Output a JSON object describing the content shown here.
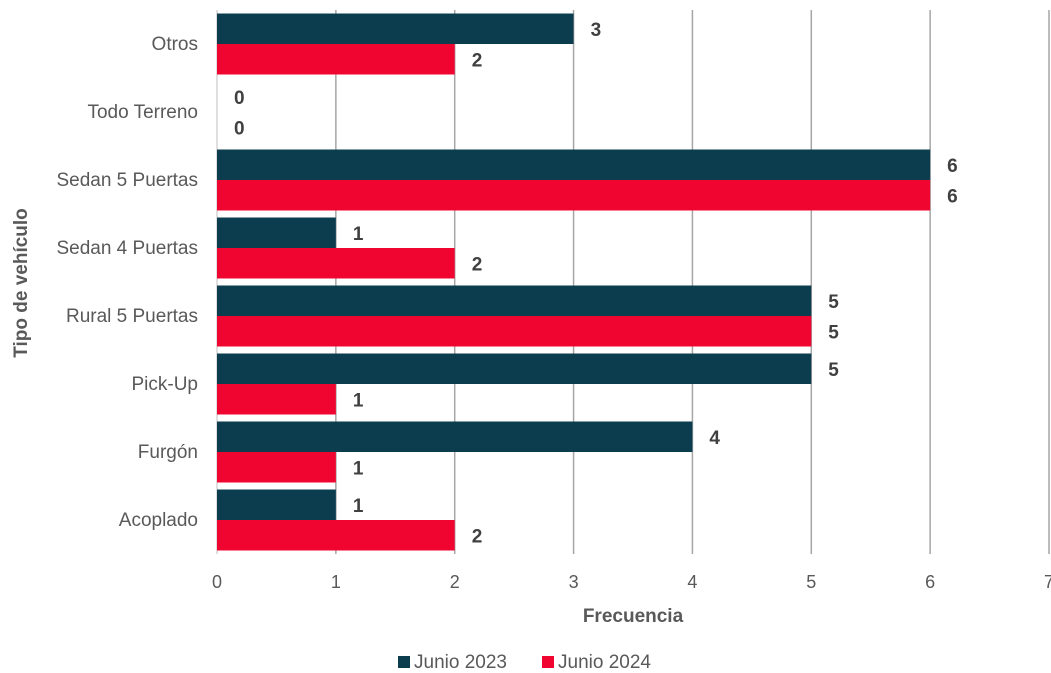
{
  "chart_data": {
    "type": "bar",
    "orientation": "horizontal",
    "categories": [
      "Otros",
      "Todo Terreno",
      "Sedan 5 Puertas",
      "Sedan 4 Puertas",
      "Rural 5 Puertas",
      "Pick-Up",
      "Furgón",
      "Acoplado"
    ],
    "series": [
      {
        "name": "Junio 2023",
        "color": "#0b3d4f",
        "values": [
          3,
          0,
          6,
          1,
          5,
          5,
          4,
          1
        ]
      },
      {
        "name": "Junio 2024",
        "color": "#f00530",
        "values": [
          2,
          0,
          6,
          2,
          5,
          1,
          1,
          2
        ]
      }
    ],
    "xlabel": "Frecuencia",
    "ylabel": "Tipo de vehículo",
    "xlim": [
      0,
      7
    ],
    "xticks": [
      0,
      1,
      2,
      3,
      4,
      5,
      6,
      7
    ],
    "grid": "vertical",
    "legend_position": "bottom",
    "data_labels": true
  }
}
